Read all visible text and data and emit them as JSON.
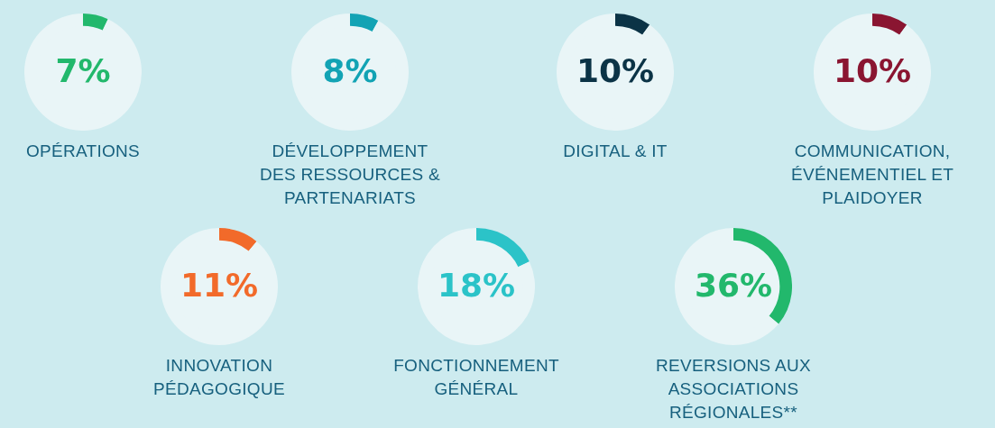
{
  "chart_data": [
    {
      "type": "donut",
      "title": "OPÉRATIONS",
      "categories": [
        null,
        null
      ],
      "values": [
        7,
        93
      ],
      "colors": [
        "#22b86c",
        "#e9f5f7"
      ],
      "value_labels": [
        "7%",
        null
      ],
      "legend": false
    },
    {
      "type": "donut",
      "title": "DÉVELOPPEMENT\nDES RESSOURCES &\nPARTENARIATS",
      "categories": [
        null,
        null
      ],
      "values": [
        8,
        92
      ],
      "colors": [
        "#12a3b4",
        "#e9f5f7"
      ],
      "value_labels": [
        "8%",
        null
      ],
      "legend": false
    },
    {
      "type": "donut",
      "title": "DIGITAL & IT",
      "categories": [
        null,
        null
      ],
      "values": [
        10,
        90
      ],
      "colors": [
        "#0b3346",
        "#e9f5f7"
      ],
      "value_labels": [
        "10%",
        null
      ],
      "legend": false
    },
    {
      "type": "donut",
      "title": "COMMUNICATION,\nÉVÉNEMENTIEL ET\nPLAIDOYER",
      "categories": [
        null,
        null
      ],
      "values": [
        10,
        90
      ],
      "colors": [
        "#8a1531",
        "#e9f5f7"
      ],
      "value_labels": [
        "10%",
        null
      ],
      "legend": false
    },
    {
      "type": "donut",
      "title": "INNOVATION\nPÉDAGOGIQUE",
      "categories": [
        null,
        null
      ],
      "values": [
        11,
        89
      ],
      "colors": [
        "#f26a2a",
        "#e9f5f7"
      ],
      "value_labels": [
        "11%",
        null
      ],
      "legend": false
    },
    {
      "type": "donut",
      "title": "FONCTIONNEMENT\nGÉNÉRAL",
      "categories": [
        null,
        null
      ],
      "values": [
        18,
        82
      ],
      "colors": [
        "#2bc3c8",
        "#e9f5f7"
      ],
      "value_labels": [
        "18%",
        null
      ],
      "legend": false
    },
    {
      "type": "donut",
      "title": "REVERSIONS AUX\nASSOCIATIONS\nRÉGIONALES**",
      "categories": [
        null,
        null
      ],
      "values": [
        36,
        64
      ],
      "colors": [
        "#22b86c",
        "#e9f5f7"
      ],
      "value_labels": [
        "36%",
        null
      ],
      "legend": false
    }
  ]
}
